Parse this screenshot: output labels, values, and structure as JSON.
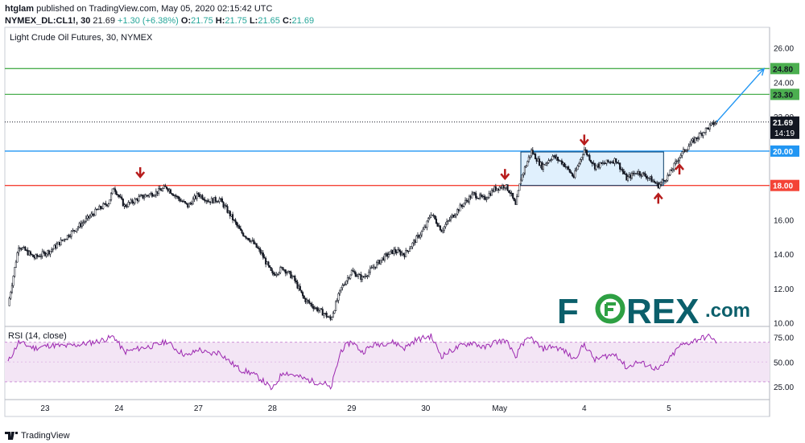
{
  "header": {
    "publisher": "htglam",
    "published_text": " published on TradingView.com, May 05, 2020 02:15:42 UTC"
  },
  "quote": {
    "symbol": "NYMEX_DL:CL1!, 30",
    "last": "21.69",
    "change": "+1.30 (+6.38%)",
    "o_label": "O:",
    "o_value": "21.75",
    "h_label": "H:",
    "h_value": "21.75",
    "l_label": "L:",
    "l_value": "21.65",
    "c_label": "C:",
    "c_value": "21.69"
  },
  "footer": {
    "brand": "TradingView"
  },
  "watermark": {
    "text_left": "F",
    "text_right": "REX",
    "suffix": ".com"
  },
  "colors": {
    "green_line": "#4caf50",
    "blue_line": "#2196f3",
    "red_line": "#f44336",
    "arrow_red": "#b71c1c",
    "rsi_line": "#9c27b0",
    "rsi_fill": "#f3e5f5",
    "watermark": "#0b5f6b",
    "watermark_o": "#2ea043"
  },
  "chart_data": [
    {
      "type": "candlestick",
      "title": "Light Crude Oil Futures, 30, NYMEX",
      "ylim": [
        9.8,
        27.2
      ],
      "y_ticks": [
        "10.00",
        "12.00",
        "14.00",
        "16.00",
        "18.00",
        "20.00",
        "22.00",
        "24.00",
        "26.00"
      ],
      "x_ticks": [
        "23",
        "24",
        "27",
        "28",
        "29",
        "30",
        "May",
        "4",
        "5"
      ],
      "price_path": [
        [
          0,
          11.0
        ],
        [
          2,
          14.5
        ],
        [
          5,
          13.8
        ],
        [
          8,
          14.2
        ],
        [
          11,
          15.0
        ],
        [
          14,
          15.8
        ],
        [
          17,
          16.6
        ],
        [
          19,
          17.0
        ],
        [
          20,
          17.9
        ],
        [
          22,
          16.8
        ],
        [
          25,
          17.3
        ],
        [
          28,
          17.6
        ],
        [
          30,
          17.9
        ],
        [
          32,
          17.3
        ],
        [
          34,
          16.8
        ],
        [
          36,
          17.5
        ],
        [
          38,
          17.1
        ],
        [
          40,
          17.2
        ],
        [
          42,
          16.3
        ],
        [
          44,
          15.3
        ],
        [
          46,
          14.8
        ],
        [
          48,
          14.0
        ],
        [
          50,
          12.8
        ],
        [
          52,
          13.2
        ],
        [
          54,
          12.6
        ],
        [
          56,
          11.4
        ],
        [
          58,
          10.9
        ],
        [
          60,
          10.5
        ],
        [
          61,
          10.2
        ],
        [
          63,
          12.0
        ],
        [
          65,
          13.0
        ],
        [
          67,
          12.6
        ],
        [
          69,
          13.2
        ],
        [
          71,
          13.8
        ],
        [
          73,
          14.2
        ],
        [
          75,
          14.0
        ],
        [
          77,
          14.8
        ],
        [
          79,
          15.6
        ],
        [
          80,
          16.4
        ],
        [
          82,
          15.4
        ],
        [
          84,
          16.2
        ],
        [
          86,
          16.9
        ],
        [
          88,
          17.5
        ],
        [
          90,
          17.2
        ],
        [
          92,
          17.8
        ],
        [
          94,
          18.0
        ],
        [
          95,
          17.6
        ],
        [
          96,
          16.8
        ],
        [
          97,
          18.4
        ],
        [
          99,
          20.0
        ],
        [
          101,
          19.1
        ],
        [
          103,
          19.7
        ],
        [
          105,
          19.3
        ],
        [
          107,
          18.5
        ],
        [
          108,
          19.3
        ],
        [
          109,
          20.1
        ],
        [
          111,
          19.1
        ],
        [
          113,
          19.3
        ],
        [
          115,
          19.5
        ],
        [
          117,
          18.4
        ],
        [
          119,
          18.8
        ],
        [
          121,
          18.5
        ],
        [
          123,
          18.0
        ],
        [
          125,
          18.6
        ],
        [
          127,
          19.7
        ],
        [
          129,
          20.4
        ],
        [
          131,
          21.0
        ],
        [
          133,
          21.5
        ],
        [
          134,
          21.69
        ]
      ],
      "rsi": {
        "title": "RSI (14, close)",
        "ylim": [
          12,
          86
        ],
        "y_ticks": [
          "25.00",
          "50.00",
          "75.00"
        ],
        "band": [
          30,
          70
        ],
        "path": [
          [
            0,
            50
          ],
          [
            2,
            70
          ],
          [
            5,
            64
          ],
          [
            8,
            67
          ],
          [
            11,
            66
          ],
          [
            14,
            68
          ],
          [
            17,
            71
          ],
          [
            19,
            74
          ],
          [
            20,
            76
          ],
          [
            22,
            60
          ],
          [
            25,
            64
          ],
          [
            28,
            67
          ],
          [
            30,
            71
          ],
          [
            32,
            62
          ],
          [
            34,
            56
          ],
          [
            36,
            63
          ],
          [
            38,
            58
          ],
          [
            40,
            60
          ],
          [
            42,
            50
          ],
          [
            44,
            42
          ],
          [
            46,
            39
          ],
          [
            48,
            32
          ],
          [
            50,
            22
          ],
          [
            52,
            40
          ],
          [
            54,
            37
          ],
          [
            56,
            33
          ],
          [
            58,
            30
          ],
          [
            60,
            28
          ],
          [
            61,
            22
          ],
          [
            63,
            62
          ],
          [
            65,
            71
          ],
          [
            67,
            60
          ],
          [
            69,
            67
          ],
          [
            71,
            69
          ],
          [
            73,
            70
          ],
          [
            75,
            64
          ],
          [
            77,
            72
          ],
          [
            79,
            75
          ],
          [
            80,
            76
          ],
          [
            82,
            56
          ],
          [
            84,
            62
          ],
          [
            86,
            67
          ],
          [
            88,
            70
          ],
          [
            90,
            64
          ],
          [
            92,
            70
          ],
          [
            94,
            72
          ],
          [
            95,
            66
          ],
          [
            96,
            52
          ],
          [
            97,
            68
          ],
          [
            99,
            74
          ],
          [
            101,
            63
          ],
          [
            103,
            66
          ],
          [
            105,
            62
          ],
          [
            107,
            53
          ],
          [
            108,
            60
          ],
          [
            109,
            68
          ],
          [
            111,
            52
          ],
          [
            113,
            56
          ],
          [
            115,
            58
          ],
          [
            117,
            44
          ],
          [
            119,
            50
          ],
          [
            121,
            47
          ],
          [
            123,
            42
          ],
          [
            125,
            52
          ],
          [
            127,
            66
          ],
          [
            129,
            70
          ],
          [
            131,
            74
          ],
          [
            133,
            76
          ],
          [
            134,
            68
          ]
        ]
      },
      "levels": [
        {
          "value": 24.8,
          "label": "24.80",
          "color": "green"
        },
        {
          "value": 23.3,
          "label": "23.30",
          "color": "green"
        },
        {
          "value": 20.0,
          "label": "20.00",
          "color": "blue"
        },
        {
          "value": 18.0,
          "label": "18.00",
          "color": "red"
        }
      ],
      "last_price": {
        "value": 21.69,
        "label": "21.69",
        "countdown": "14:19"
      },
      "annotations": {
        "range_box": {
          "x": [
            97,
            124
          ],
          "y": [
            18.0,
            19.95
          ]
        },
        "forecast_arrow": {
          "from": [
            134,
            21.69
          ],
          "to": [
            143,
            24.8
          ]
        },
        "down_arrows": [
          [
            25,
            18.5
          ],
          [
            94,
            18.4
          ],
          [
            109,
            20.4
          ]
        ],
        "up_arrows": [
          [
            123,
            17.5
          ],
          [
            127,
            19.2
          ]
        ]
      }
    }
  ]
}
